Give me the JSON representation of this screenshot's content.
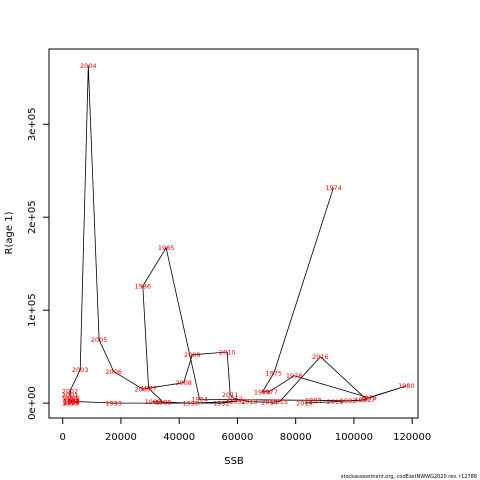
{
  "chart_data": {
    "type": "line",
    "xlabel": "SSB",
    "ylabel": "R(age 1)",
    "xlim": [
      -4700,
      122000
    ],
    "ylim": [
      -16000,
      381000
    ],
    "x_ticks": [
      {
        "value": 0,
        "label": "0"
      },
      {
        "value": 20000,
        "label": "20000"
      },
      {
        "value": 40000,
        "label": "40000"
      },
      {
        "value": 60000,
        "label": "60000"
      },
      {
        "value": 80000,
        "label": "80000"
      },
      {
        "value": 100000,
        "label": "100000"
      },
      {
        "value": 120000,
        "label": "120000"
      }
    ],
    "y_ticks": [
      {
        "value": 0,
        "label": "0e+00"
      },
      {
        "value": 100000,
        "label": "1e+05"
      },
      {
        "value": 200000,
        "label": "2e+05"
      },
      {
        "value": 300000,
        "label": "3e+05"
      }
    ],
    "line_color": "#000000",
    "label_color": "#ff0000",
    "points": [
      {
        "label": "1974",
        "x": 93000,
        "y": 232000
      },
      {
        "label": "1975",
        "x": 72500,
        "y": 32000
      },
      {
        "label": "1976",
        "x": 68500,
        "y": 12000
      },
      {
        "label": "1977",
        "x": 71000,
        "y": 12500
      },
      {
        "label": "1978",
        "x": 79500,
        "y": 29500
      },
      {
        "label": "1979",
        "x": 105000,
        "y": 6000
      },
      {
        "label": "1980",
        "x": 118000,
        "y": 18500
      },
      {
        "label": "1981",
        "x": 103000,
        "y": 3500
      },
      {
        "label": "1982",
        "x": 98000,
        "y": 2500
      },
      {
        "label": "1983",
        "x": 86000,
        "y": 3000
      },
      {
        "label": "1984",
        "x": 47000,
        "y": 4000
      },
      {
        "label": "1985",
        "x": 35500,
        "y": 167000
      },
      {
        "label": "1986",
        "x": 27500,
        "y": 126000
      },
      {
        "label": "1987",
        "x": 29500,
        "y": 16000
      },
      {
        "label": "1988",
        "x": 34500,
        "y": 1000
      },
      {
        "label": "1989",
        "x": 31000,
        "y": 1500
      },
      {
        "label": "1990",
        "x": 44000,
        "y": 0
      },
      {
        "label": "1991",
        "x": 60000,
        "y": 2000
      },
      {
        "label": "1992",
        "x": 54500,
        "y": 0
      },
      {
        "label": "1993",
        "x": 17500,
        "y": 0
      },
      {
        "label": "1994",
        "x": 3000,
        "y": 2000
      },
      {
        "label": "1995",
        "x": 2500,
        "y": 0
      },
      {
        "label": "1996",
        "x": 3000,
        "y": 500
      },
      {
        "label": "1997",
        "x": 3000,
        "y": 1000
      },
      {
        "label": "1998",
        "x": 3000,
        "y": 2500
      },
      {
        "label": "1999",
        "x": 2500,
        "y": 4000
      },
      {
        "label": "2000",
        "x": 3000,
        "y": 6000
      },
      {
        "label": "2001",
        "x": 2500,
        "y": 9000
      },
      {
        "label": "2002",
        "x": 2500,
        "y": 13000
      },
      {
        "label": "2003",
        "x": 6000,
        "y": 36000
      },
      {
        "label": "2004",
        "x": 8800,
        "y": 363000
      },
      {
        "label": "2005",
        "x": 12500,
        "y": 68000
      },
      {
        "label": "2006",
        "x": 17500,
        "y": 34000
      },
      {
        "label": "2007",
        "x": 27500,
        "y": 15000
      },
      {
        "label": "2008",
        "x": 41500,
        "y": 22000
      },
      {
        "label": "2009",
        "x": 44500,
        "y": 52000
      },
      {
        "label": "2010",
        "x": 56500,
        "y": 55000
      },
      {
        "label": "2011",
        "x": 57500,
        "y": 9000
      },
      {
        "label": "2012",
        "x": 59000,
        "y": 5000
      },
      {
        "label": "2013",
        "x": 64000,
        "y": 1500
      },
      {
        "label": "2014",
        "x": 71000,
        "y": 1000
      },
      {
        "label": "2015",
        "x": 74500,
        "y": 1500
      },
      {
        "label": "2016",
        "x": 88500,
        "y": 50000
      },
      {
        "label": "2017",
        "x": 104500,
        "y": 3500
      },
      {
        "label": "2018",
        "x": 93500,
        "y": 1500
      },
      {
        "label": "2019",
        "x": 83000,
        "y": 0
      }
    ]
  },
  "footer": "stockassessment.org, codEastNWWG2020  rev. r12786"
}
